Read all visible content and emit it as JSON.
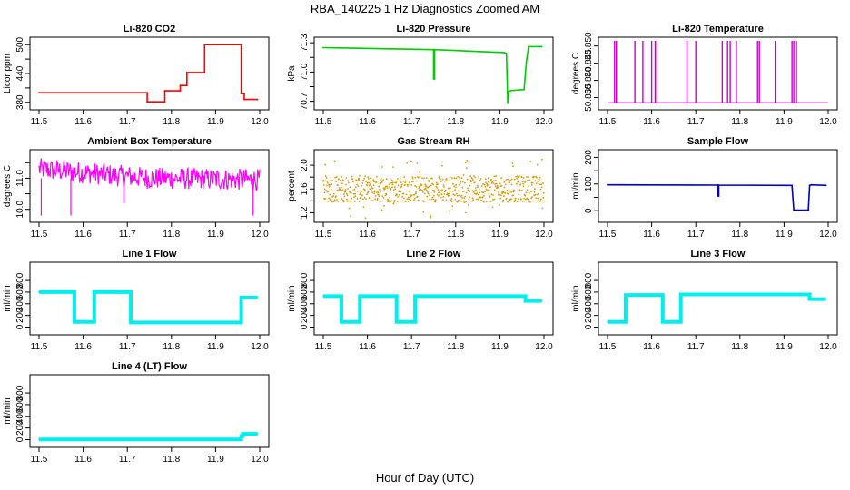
{
  "figure": {
    "title": "RBA_140225  1 Hz Diagnostics Zoomed AM",
    "xlabel": "Hour of Day (UTC)"
  },
  "chart_data": [
    {
      "type": "line",
      "title": "Li-820 CO2",
      "ylabel": "Licor ppm",
      "color": "#ff0000",
      "xlim": [
        11.5,
        12.0
      ],
      "ylim": [
        372,
        508
      ],
      "xticks": [
        "11.5",
        "11.6",
        "11.7",
        "11.8",
        "11.9",
        "12.0"
      ],
      "yticks": [
        "380",
        "440",
        "500"
      ],
      "ytick_values": [
        380,
        440,
        500
      ],
      "extra_yticks": [
        410,
        470
      ],
      "x": [
        11.5,
        11.745,
        11.745,
        11.785,
        11.785,
        11.82,
        11.82,
        11.835,
        11.835,
        11.875,
        11.875,
        11.958,
        11.958,
        11.965,
        11.965,
        11.995
      ],
      "y": [
        400,
        400,
        381,
        381,
        404,
        404,
        415,
        415,
        442,
        442,
        500,
        500,
        398,
        398,
        386,
        386
      ]
    },
    {
      "type": "line",
      "title": "Li-820 Pressure",
      "ylabel": "kPa",
      "color": "#00cc00",
      "xlim": [
        11.5,
        12.0
      ],
      "ylim": [
        70.65,
        71.32
      ],
      "xticks": [
        "11.5",
        "11.6",
        "11.7",
        "11.8",
        "11.9",
        "12.0"
      ],
      "yticks": [
        "70.7",
        "71.0",
        "71.3"
      ],
      "ytick_values": [
        70.7,
        71.0,
        71.3
      ],
      "extra_yticks": [
        70.85,
        71.15
      ],
      "x": [
        11.5,
        11.75,
        11.75,
        11.752,
        11.752,
        11.91,
        11.915,
        11.918,
        11.92,
        11.925,
        11.955,
        11.96,
        11.965,
        11.995
      ],
      "y": [
        71.25,
        71.23,
        70.93,
        70.93,
        71.23,
        71.2,
        71.19,
        70.68,
        70.8,
        70.81,
        70.82,
        71.1,
        71.26,
        71.26
      ]
    },
    {
      "type": "line",
      "title": "Li-820 Temperature",
      "ylabel": "degrees C",
      "color": "#cc00cc",
      "xlim": [
        11.5,
        12.0
      ],
      "ylim": [
        50.8325,
        50.8515
      ],
      "xticks": [
        "11.5",
        "11.6",
        "11.7",
        "11.8",
        "11.9",
        "12.0"
      ],
      "yticks": [
        "50.835",
        "50.840",
        "50.845",
        "50.850"
      ],
      "ytick_values": [
        50.835,
        50.84,
        50.845,
        50.85
      ],
      "baseline": 50.8335,
      "spike_top": 50.8515,
      "spikes_x": [
        11.516,
        11.52,
        11.562,
        11.58,
        11.6,
        11.608,
        11.612,
        11.68,
        11.7,
        11.76,
        11.772,
        11.778,
        11.792,
        11.84,
        11.844,
        11.88,
        11.918,
        11.922,
        11.928
      ]
    },
    {
      "type": "line",
      "title": "Ambient Box Temperature",
      "ylabel": "degrees C",
      "color": "#ff00ff",
      "xlim": [
        11.5,
        12.0
      ],
      "ylim": [
        9.7,
        11.8
      ],
      "xticks": [
        "11.5",
        "11.6",
        "11.7",
        "11.8",
        "11.9",
        "12.0"
      ],
      "yticks": [
        "10.0",
        "11.0"
      ],
      "ytick_values": [
        10.0,
        11.0
      ],
      "extra_yticks": [
        10.5,
        11.5
      ],
      "noise_center_x": [
        11.5,
        11.75,
        12.0
      ],
      "noise_center_y": [
        11.3,
        11.0,
        10.95
      ],
      "noise_amplitude": 0.35,
      "dips_x": [
        11.505,
        11.572,
        11.692,
        11.985
      ],
      "dips_y": [
        9.8,
        9.8,
        10.2,
        9.8
      ]
    },
    {
      "type": "scatter",
      "title": "Gas Stream RH",
      "ylabel": "percent",
      "color": "#dd9900",
      "xlim": [
        11.5,
        12.0
      ],
      "ylim": [
        1.1,
        2.2
      ],
      "xticks": [
        "11.5",
        "11.6",
        "11.7",
        "11.8",
        "11.9",
        "12.0"
      ],
      "yticks": [
        "1.2",
        "1.6",
        "2.0"
      ],
      "ytick_values": [
        1.2,
        1.6,
        2.0
      ],
      "extra_yticks": [
        1.4,
        1.8
      ],
      "center": 1.6,
      "band": 0.22,
      "outlier_low": 1.1,
      "outlier_high": 2.1
    },
    {
      "type": "line",
      "title": "Sample Flow",
      "ylabel": "ml/min",
      "color": "#0000cc",
      "xlim": [
        11.5,
        12.0
      ],
      "ylim": [
        -30,
        215
      ],
      "xticks": [
        "11.5",
        "11.6",
        "11.7",
        "11.8",
        "11.9",
        "12.0"
      ],
      "yticks": [
        "0",
        "100",
        "200"
      ],
      "ytick_values": [
        0,
        100,
        200
      ],
      "extra_yticks": [
        50,
        150
      ],
      "x": [
        11.5,
        11.75,
        11.75,
        11.752,
        11.752,
        11.91,
        11.918,
        11.922,
        11.955,
        11.958,
        11.962,
        11.995
      ],
      "y": [
        97,
        96,
        55,
        55,
        96,
        95,
        95,
        2,
        2,
        95,
        97,
        95
      ]
    },
    {
      "type": "line",
      "title": "Line 1 Flow",
      "ylabel": "ml/min",
      "color": "#00eeee",
      "xlim": [
        11.5,
        12.0
      ],
      "ylim": [
        -70,
        1050
      ],
      "xticks": [
        "11.5",
        "11.6",
        "11.7",
        "11.8",
        "11.9",
        "12.0"
      ],
      "yticks": [
        "0",
        "200",
        "400",
        "600",
        "800"
      ],
      "ytick_values": [
        0,
        200,
        400,
        600,
        800
      ],
      "x": [
        11.5,
        11.58,
        11.58,
        11.625,
        11.625,
        11.708,
        11.708,
        11.958,
        11.958,
        11.995
      ],
      "y": [
        600,
        600,
        90,
        90,
        600,
        600,
        80,
        80,
        510,
        510
      ]
    },
    {
      "type": "line",
      "title": "Line 2 Flow",
      "ylabel": "ml/min",
      "color": "#00eeee",
      "xlim": [
        11.5,
        12.0
      ],
      "ylim": [
        -70,
        1050
      ],
      "xticks": [
        "11.5",
        "11.6",
        "11.7",
        "11.8",
        "11.9",
        "12.0"
      ],
      "yticks": [
        "0",
        "200",
        "400",
        "600",
        "800"
      ],
      "ytick_values": [
        0,
        200,
        400,
        600,
        800
      ],
      "x": [
        11.5,
        11.541,
        11.541,
        11.583,
        11.583,
        11.666,
        11.666,
        11.708,
        11.708,
        11.958,
        11.958,
        11.995
      ],
      "y": [
        530,
        530,
        90,
        90,
        530,
        530,
        90,
        90,
        530,
        530,
        450,
        450
      ]
    },
    {
      "type": "line",
      "title": "Line 3 Flow",
      "ylabel": "ml/min",
      "color": "#00eeee",
      "xlim": [
        11.5,
        12.0
      ],
      "ylim": [
        -70,
        1050
      ],
      "xticks": [
        "11.5",
        "11.6",
        "11.7",
        "11.8",
        "11.9",
        "12.0"
      ],
      "yticks": [
        "0",
        "200",
        "400",
        "600",
        "800"
      ],
      "ytick_values": [
        0,
        200,
        400,
        600,
        800
      ],
      "x": [
        11.5,
        11.541,
        11.541,
        11.625,
        11.625,
        11.666,
        11.666,
        11.958,
        11.958,
        11.995
      ],
      "y": [
        90,
        90,
        550,
        550,
        90,
        90,
        560,
        560,
        480,
        480
      ]
    },
    {
      "type": "line",
      "title": "Line 4 (LT) Flow",
      "ylabel": "ml/min",
      "color": "#00eeee",
      "xlim": [
        11.5,
        12.0
      ],
      "ylim": [
        -70,
        1050
      ],
      "xticks": [
        "11.5",
        "11.6",
        "11.7",
        "11.8",
        "11.9",
        "12.0"
      ],
      "yticks": [
        "0",
        "200",
        "400",
        "600",
        "800"
      ],
      "ytick_values": [
        0,
        200,
        400,
        600,
        800
      ],
      "x": [
        11.5,
        11.958,
        11.958,
        11.962,
        11.962,
        11.995
      ],
      "y": [
        5,
        5,
        60,
        60,
        100,
        100
      ]
    }
  ]
}
